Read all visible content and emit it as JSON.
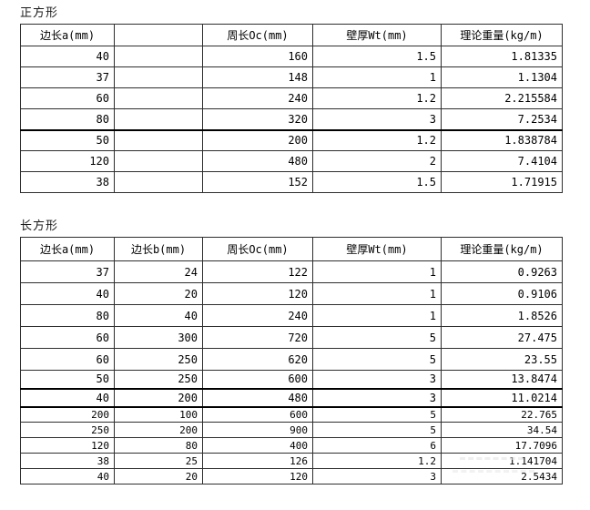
{
  "colors": {
    "background": "#ffffff",
    "grid_border": "#2e2e2e",
    "text": "#000000"
  },
  "tables": [
    {
      "title": "正方形",
      "headers": [
        "边长a(mm)",
        "",
        "周长Oc(mm)",
        "壁厚Wt(mm)",
        "理论重量(kg/m)"
      ],
      "rows": [
        [
          "40",
          "",
          "160",
          "1.5",
          "1.81335"
        ],
        [
          "37",
          "",
          "148",
          "1",
          "1.1304"
        ],
        [
          "60",
          "",
          "240",
          "1.2",
          "2.215584"
        ],
        [
          "80",
          "",
          "320",
          "3",
          "7.2534"
        ],
        [
          "50",
          "",
          "200",
          "1.2",
          "1.838784"
        ],
        [
          "120",
          "",
          "480",
          "2",
          "7.4104"
        ],
        [
          "38",
          "",
          "152",
          "1.5",
          "1.71915"
        ]
      ]
    },
    {
      "title": "长方形",
      "headers": [
        "边长a(mm)",
        "边长b(mm)",
        "周长Oc(mm)",
        "壁厚Wt(mm)",
        "理论重量(kg/m)"
      ],
      "rows": [
        [
          "37",
          "24",
          "122",
          "1",
          "0.9263"
        ],
        [
          "40",
          "20",
          "120",
          "1",
          "0.9106"
        ],
        [
          "80",
          "40",
          "240",
          "1",
          "1.8526"
        ],
        [
          "60",
          "300",
          "720",
          "5",
          "27.475"
        ],
        [
          "60",
          "250",
          "620",
          "5",
          "23.55"
        ],
        [
          "50",
          "250",
          "600",
          "3",
          "13.8474"
        ],
        [
          "40",
          "200",
          "480",
          "3",
          "11.0214"
        ],
        [
          "200",
          "100",
          "600",
          "5",
          "22.765"
        ],
        [
          "250",
          "200",
          "900",
          "5",
          "34.54"
        ],
        [
          "120",
          "80",
          "400",
          "6",
          "17.7096"
        ],
        [
          "38",
          "25",
          "126",
          "1.2",
          "1.141704"
        ],
        [
          "40",
          "20",
          "120",
          "3",
          "2.5434"
        ]
      ]
    }
  ]
}
